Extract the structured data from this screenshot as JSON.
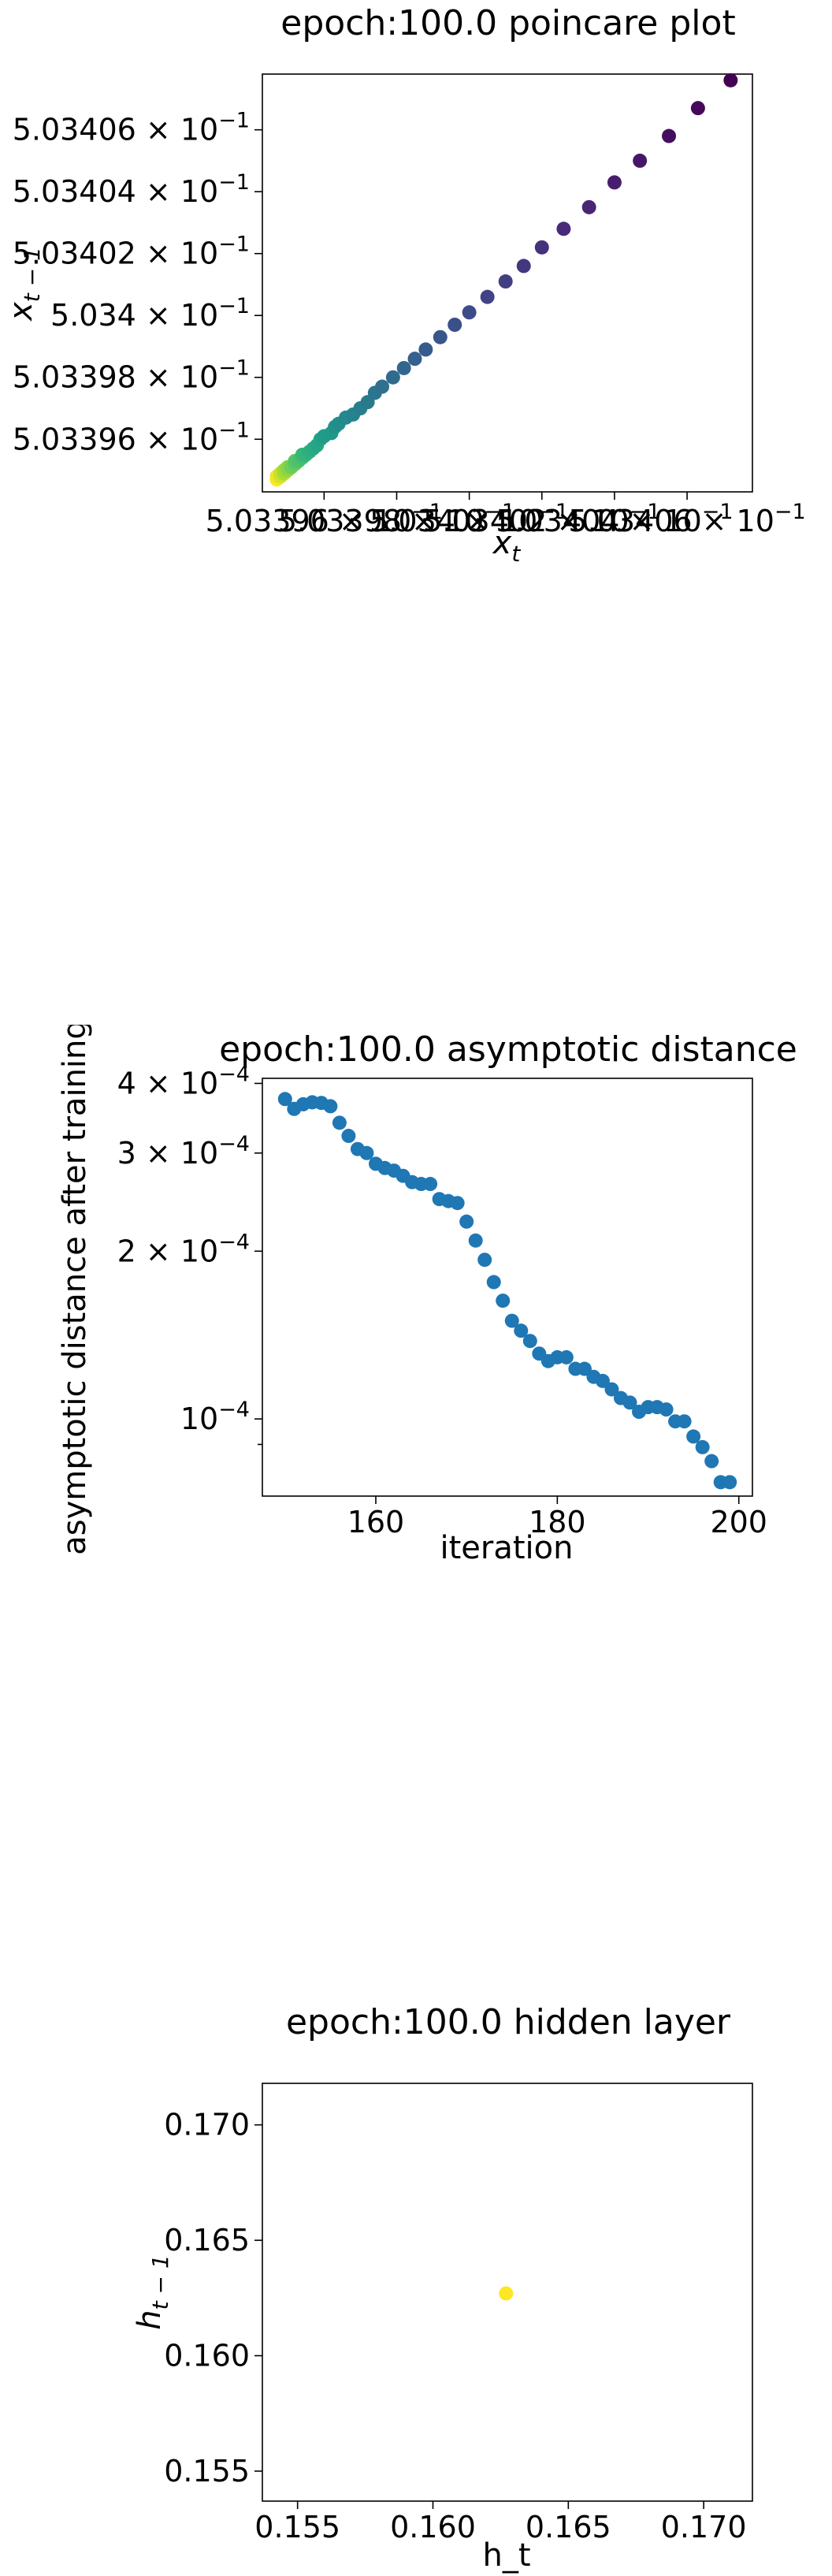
{
  "charts": [
    {
      "type": "scatter",
      "title": "epoch:100.0 poincare plot",
      "xlabel": "x_t",
      "ylabel": "x_{t-1}",
      "x_scale": "log",
      "y_scale": "log",
      "colormap": "viridis",
      "y_ticks": [
        {
          "value": 0.503396,
          "mantissa": "5.03396",
          "exp": "−1"
        },
        {
          "value": 0.503398,
          "mantissa": "5.03398",
          "exp": "−1"
        },
        {
          "value": 0.5034,
          "mantissa": "5.034",
          "exp": "−1"
        },
        {
          "value": 0.503402,
          "mantissa": "5.03402",
          "exp": "−1"
        },
        {
          "value": 0.503404,
          "mantissa": "5.03404",
          "exp": "−1"
        },
        {
          "value": 0.503406,
          "mantissa": "5.03406",
          "exp": "−1"
        }
      ],
      "x_ticks": [
        {
          "value": 0.503396,
          "mantissa": "5.03396",
          "exp": "−1"
        },
        {
          "value": 0.503398,
          "mantissa": "5.03398",
          "exp": "−1"
        },
        {
          "value": 0.5034,
          "mantissa": "5.034",
          "exp": "−1"
        },
        {
          "value": 0.503402,
          "mantissa": "5.03402",
          "exp": "−1"
        },
        {
          "value": 0.503404,
          "mantissa": "5.03404",
          "exp": "−1"
        },
        {
          "value": 0.503406,
          "mantissa": "5.03406",
          "exp": "−1"
        }
      ],
      "x_range": [
        0.5033943,
        0.5034078
      ],
      "y_range": [
        0.5033943,
        0.5034078
      ],
      "points_x": [
        0.5034072,
        0.5034063,
        0.5034055,
        0.5034047,
        0.503404,
        0.5034033,
        0.5034026,
        0.503402,
        0.5034015,
        0.503401,
        0.5034005,
        0.5034,
        0.5033996,
        0.5033992,
        0.5033988,
        0.5033985,
        0.5033982,
        0.5033979,
        0.5033976,
        0.5033974,
        0.5033972,
        0.503397,
        0.5033968,
        0.5033966,
        0.5033964,
        0.5033963,
        0.5033962,
        0.503396,
        0.5033959,
        0.5033958,
        0.5033957,
        0.5033956,
        0.5033955,
        0.5033954,
        0.5033954,
        0.5033953,
        0.5033952,
        0.5033952,
        0.5033951,
        0.5033951,
        0.503395,
        0.503395,
        0.5033949,
        0.5033949,
        0.5033949,
        0.5033948,
        0.5033948,
        0.5033948,
        0.5033947,
        0.5033947
      ],
      "points_y": [
        0.5034076,
        0.5034067,
        0.5034058,
        0.503405,
        0.5034043,
        0.5034035,
        0.5034028,
        0.5034022,
        0.5034016,
        0.5034011,
        0.5034006,
        0.5034001,
        0.5033997,
        0.5033993,
        0.5033989,
        0.5033986,
        0.5033983,
        0.503398,
        0.5033977,
        0.5033975,
        0.5033972,
        0.503397,
        0.5033968,
        0.5033967,
        0.5033965,
        0.5033964,
        0.5033962,
        0.5033961,
        0.503396,
        0.5033958,
        0.5033957,
        0.5033956,
        0.5033955,
        0.5033955,
        0.5033954,
        0.5033953,
        0.5033953,
        0.5033952,
        0.5033951,
        0.5033951,
        0.5033951,
        0.503395,
        0.503395,
        0.5033949,
        0.5033949,
        0.5033949,
        0.5033948,
        0.5033948,
        0.5033948,
        0.5033947
      ]
    },
    {
      "type": "scatter",
      "title": "epoch:100.0 asymptotic distance",
      "xlabel": "iteration",
      "ylabel": "asymptotic distance after training",
      "x_scale": "linear",
      "y_scale": "log",
      "color": "#1f77b4",
      "x_range": [
        147.5,
        201.5
      ],
      "y_range": [
        7.27e-05,
        0.0004085
      ],
      "x_ticks": [
        160,
        180,
        200
      ],
      "y_major_ticks": [
        {
          "value": 0.0004,
          "mantissa": "4",
          "exp": "−4",
          "times": true
        },
        {
          "value": 0.0003,
          "mantissa": "3",
          "exp": "−4",
          "times": true
        },
        {
          "value": 0.0002,
          "mantissa": "2",
          "exp": "−4",
          "times": true
        },
        {
          "value": 0.0001,
          "mantissa": "10",
          "exp": "−4",
          "times": false
        }
      ],
      "y_minor_ticks": [
        9e-05
      ],
      "x": [
        150,
        151,
        152,
        153,
        154,
        155,
        156,
        157,
        158,
        159,
        160,
        161,
        162,
        163,
        164,
        165,
        166,
        167,
        168,
        169,
        170,
        171,
        172,
        173,
        174,
        175,
        176,
        177,
        178,
        179,
        180,
        181,
        182,
        183,
        184,
        185,
        186,
        187,
        188,
        189,
        190,
        191,
        192,
        193,
        194,
        195,
        196,
        197,
        198,
        199
      ],
      "y": [
        0.000375,
        0.00036,
        0.000367,
        0.00037,
        0.000369,
        0.000364,
        0.00034,
        0.000322,
        0.000305,
        0.0003,
        0.000287,
        0.000282,
        0.000279,
        0.000273,
        0.000266,
        0.000264,
        0.000264,
        0.000248,
        0.000246,
        0.000244,
        0.000226,
        0.000209,
        0.000193,
        0.000176,
        0.000163,
        0.00015,
        0.000144,
        0.000138,
        0.000131,
        0.000127,
        0.000129,
        0.000129,
        0.000123,
        0.000123,
        0.000119,
        0.000117,
        0.000113,
        0.000109,
        0.000107,
        0.000103,
        0.000105,
        0.000105,
        0.000104,
        9.9e-05,
        9.9e-05,
        9.3e-05,
        8.9e-05,
        8.4e-05,
        7.7e-05,
        7.7e-05
      ]
    },
    {
      "type": "scatter",
      "title": "epoch:100.0 hidden layer",
      "xlabel": "h_t",
      "ylabel": "h_{t-1}",
      "x_scale": "linear",
      "y_scale": "linear",
      "color": "#fde725",
      "x_range": [
        0.1537,
        0.1718
      ],
      "y_range": [
        0.1537,
        0.1718
      ],
      "x_ticks": [
        {
          "value": 0.155,
          "label": "0.155"
        },
        {
          "value": 0.16,
          "label": "0.160"
        },
        {
          "value": 0.165,
          "label": "0.165"
        },
        {
          "value": 0.17,
          "label": "0.170"
        }
      ],
      "y_ticks": [
        {
          "value": 0.155,
          "label": "0.155"
        },
        {
          "value": 0.16,
          "label": "0.160"
        },
        {
          "value": 0.165,
          "label": "0.165"
        },
        {
          "value": 0.17,
          "label": "0.170"
        }
      ],
      "x": [
        0.1627
      ],
      "y": [
        0.1627
      ]
    }
  ],
  "text": {
    "c0_title": "epoch:100.0 poincare plot",
    "c0_xlabel_base": "x",
    "c0_xlabel_sub": "t",
    "c0_ylabel_base": "x",
    "c0_ylabel_sub": "t − 1",
    "c1_title": "epoch:100.0 asymptotic distance",
    "c1_xlabel": "iteration",
    "c1_ylabel": "asymptotic distance after training",
    "c2_title": "epoch:100.0 hidden layer",
    "c2_xlabel": "h_t",
    "c2_ylabel_base": "h",
    "c2_ylabel_sub": "t − 1"
  }
}
